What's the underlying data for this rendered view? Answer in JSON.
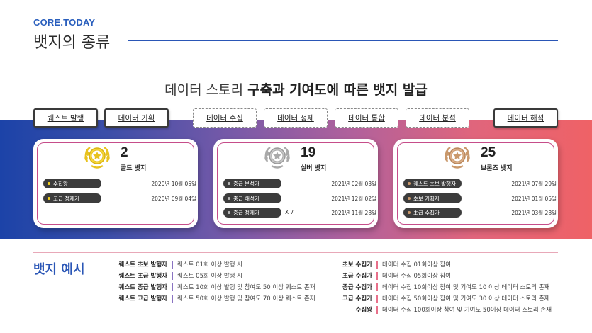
{
  "header": {
    "brand": "CORE.TODAY",
    "title": "뱃지의 종류"
  },
  "headline": {
    "normal": "데이터 스토리 ",
    "bold": "구축과 기여도에 따른 뱃지 발급"
  },
  "tags": [
    {
      "label": "퀘스트 발행",
      "style": "solid"
    },
    {
      "label": "데이터 기획",
      "style": "solid"
    },
    {
      "label": "데이터 수집",
      "style": "dashed"
    },
    {
      "label": "데이터 정제",
      "style": "dashed"
    },
    {
      "label": "데이터 통합",
      "style": "dashed"
    },
    {
      "label": "데이터 분석",
      "style": "dashed"
    },
    {
      "label": "데이터 해석",
      "style": "solid"
    }
  ],
  "cards": [
    {
      "count": "2",
      "name": "골드 뱃지",
      "medal_icon": "gold-medal-icon",
      "medal_color": "#e8c21e",
      "rows": [
        {
          "label": "수집왕",
          "mult": "",
          "date": "2020년 10월 05일",
          "dot_color": "#f5d21c"
        },
        {
          "label": "고급 정제가",
          "mult": "",
          "date": "2020년 09월 04일",
          "dot_color": "#f5d21c"
        }
      ]
    },
    {
      "count": "19",
      "name": "실버 뱃지",
      "medal_icon": "silver-medal-icon",
      "medal_color": "#a9a9a9",
      "rows": [
        {
          "label": "중급 분석가",
          "mult": "",
          "date": "2021년 02월 03일",
          "dot_color": "#b8b8b8"
        },
        {
          "label": "중급 해석가",
          "mult": "",
          "date": "2021년 12월 02일",
          "dot_color": "#b8b8b8"
        },
        {
          "label": "중급 정제가",
          "mult": "X 7",
          "date": "2021년 11월 28일",
          "dot_color": "#b8b8b8"
        }
      ]
    },
    {
      "count": "25",
      "name": "브론즈 뱃지",
      "medal_icon": "bronze-medal-icon",
      "medal_color": "#c9986b",
      "rows": [
        {
          "label": "퀘스트 초보 발행자",
          "mult": "",
          "date": "2021년 07월 29일",
          "dot_color": "#c9986b"
        },
        {
          "label": "초보 기획자",
          "mult": "",
          "date": "2021년 01월 05일",
          "dot_color": "#c9986b"
        },
        {
          "label": "초급 수집가",
          "mult": "",
          "date": "2021년 03월 28일",
          "dot_color": "#c9986b"
        }
      ]
    }
  ],
  "examples": {
    "title": "뱃지 예시",
    "left": [
      {
        "name": "퀘스트 초보 발행자",
        "desc": "퀘스트 01회 이상 발행 시"
      },
      {
        "name": "퀘스트 초급 발행자",
        "desc": "퀘스트 05회 이상 발행 시"
      },
      {
        "name": "퀘스트 중급 발행자",
        "desc": "퀘스트 10회 이상 발행 및 참여도 50 이상 퀘스트 존재"
      },
      {
        "name": "퀘스트 고급 발행자",
        "desc": "퀘스트 50회 이상 발행 및 참여도 70 이상 퀘스트 존재"
      }
    ],
    "right": [
      {
        "name": "초보 수집가",
        "desc": "데이터 수집 01회이상 참여"
      },
      {
        "name": "초급 수집가",
        "desc": "데이터 수집 05회이상 참여"
      },
      {
        "name": "중급 수집가",
        "desc": "데이터 수집 10회이상 참여 및 기여도 10 이상 데이터 스토리 존재"
      },
      {
        "name": "고급 수집가",
        "desc": "데이터 수집 50회이상 참여 및 기여도 30 이상 데이터 스토리 존재"
      },
      {
        "name": "수집왕",
        "desc": "데이터 수집 100회이상 참여 및 기여도 50이상 데이터 스토리 존재"
      }
    ],
    "left_bar_color": "#8a73c2",
    "right_bar_color": "#e8708a"
  }
}
